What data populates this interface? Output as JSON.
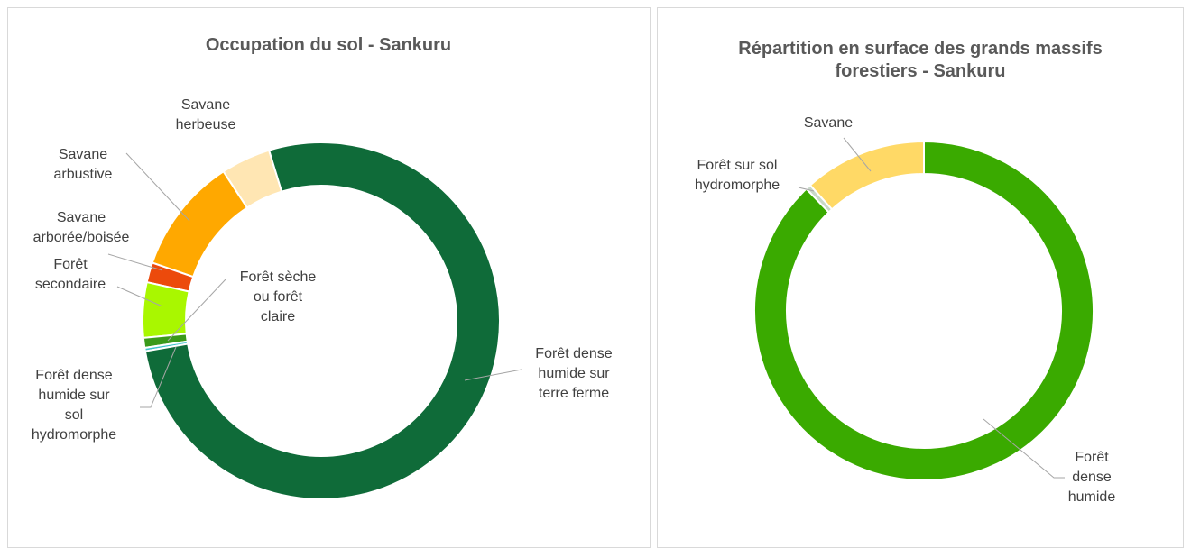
{
  "chart_data": [
    {
      "type": "donut",
      "title": "Occupation du sol - Sankuru",
      "start_angle": -17,
      "categories": [
        "Forêt dense humide sur terre ferme",
        "Forêt dense humide sur sol hydromorphe",
        "Forêt sèche ou forêt claire",
        "Forêt secondaire",
        "Savane arborée/boisée",
        "Savane arbustive",
        "Savane herbeuse"
      ],
      "values": [
        77,
        0.3,
        0.9,
        5,
        1.8,
        10.5,
        4.5
      ],
      "colors": [
        "#0f6b39",
        "#3fc4cc",
        "#3a9a1a",
        "#a9f700",
        "#ec4a0c",
        "#ffa800",
        "#ffe6b3"
      ]
    },
    {
      "type": "donut",
      "title": "Répartition en surface des grands massifs forestiers - Sankuru",
      "start_angle": 0,
      "categories": [
        "Forêt dense humide",
        "Forêt sur sol hydromorphe",
        "Savane"
      ],
      "values": [
        87.8,
        0.5,
        11.7
      ],
      "colors": [
        "#3aaa00",
        "#c9d9c9",
        "#ffd966"
      ]
    }
  ]
}
